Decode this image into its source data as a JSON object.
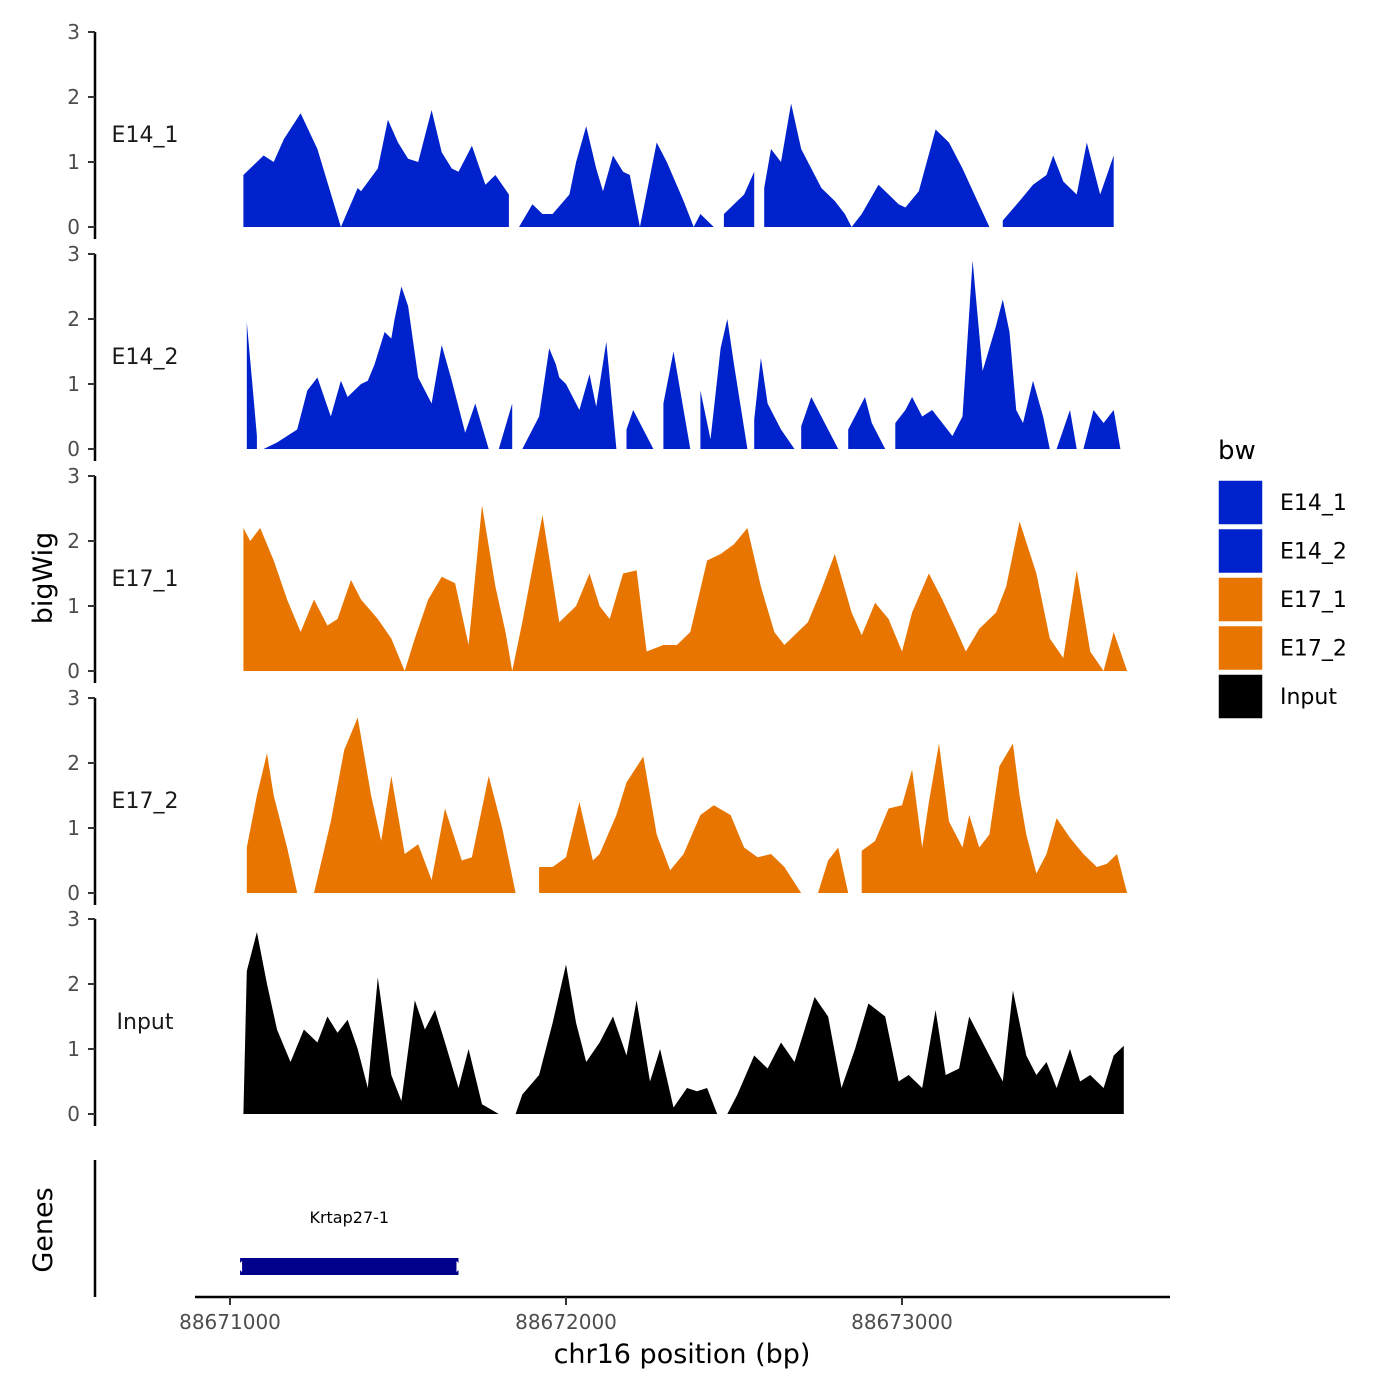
{
  "chart_data": {
    "type": "area",
    "y_axis_title": "bigWig",
    "gene_axis_title": "Genes",
    "x_axis_title": "chr16 position (bp)",
    "x_range": [
      88670900,
      88673800
    ],
    "x_ticks": [
      88671000,
      88672000,
      88673000
    ],
    "x_tick_labels": [
      "88671000",
      "88672000",
      "88673000"
    ],
    "y_range": [
      0,
      3
    ],
    "y_ticks": [
      0,
      1,
      2,
      3
    ],
    "y_tick_labels": [
      "0",
      "1",
      "2",
      "3"
    ],
    "legend": {
      "title": "bw",
      "entries": [
        {
          "label": "E14_1",
          "color": "#0022cc"
        },
        {
          "label": "E14_2",
          "color": "#0022cc"
        },
        {
          "label": "E17_1",
          "color": "#e87500"
        },
        {
          "label": "E17_2",
          "color": "#e87500"
        },
        {
          "label": "Input",
          "color": "#000000"
        }
      ]
    },
    "tracks": [
      {
        "name": "E14_1",
        "color": "#0022cc",
        "x": [
          88671040,
          88671100,
          88671130,
          88671160,
          88671210,
          88671260,
          88671330,
          88671380,
          88671390,
          88671440,
          88671470,
          88671500,
          88671530,
          88671560,
          88671600,
          88671630,
          88671660,
          88671680,
          88671720,
          88671760,
          88671790,
          88671830,
          88671860,
          88671900,
          88671930,
          88671960,
          88672010,
          88672030,
          88672060,
          88672090,
          88672110,
          88672140,
          88672170,
          88672190,
          88672220,
          88672270,
          88672300,
          88672350,
          88672380,
          88672400,
          88672440,
          88672470,
          88672500,
          88672530,
          88672560,
          88672590,
          88672610,
          88672640,
          88672670,
          88672700,
          88672730,
          88672760,
          88672800,
          88672830,
          88672850,
          88672880,
          88672930,
          88672960,
          88672990,
          88673010,
          88673050,
          88673100,
          88673140,
          88673180,
          88673220,
          88673260,
          88673300,
          88673350,
          88673390,
          88673430,
          88673450,
          88673480,
          88673520,
          88673550,
          88673590,
          88673630,
          88673660
        ],
        "y": [
          0.8,
          1.1,
          1.0,
          1.35,
          1.75,
          1.2,
          0.0,
          0.6,
          0.55,
          0.9,
          1.65,
          1.3,
          1.05,
          1.0,
          1.8,
          1.15,
          0.9,
          0.85,
          1.25,
          0.65,
          0.8,
          0.5,
          0.0,
          0.35,
          0.2,
          0.2,
          0.5,
          1.0,
          1.55,
          0.9,
          0.55,
          1.1,
          0.85,
          0.8,
          0.0,
          1.3,
          1.0,
          0.4,
          0.0,
          0.2,
          0.0,
          0.2,
          0.35,
          0.5,
          0.85,
          0.6,
          1.2,
          1.0,
          1.9,
          1.2,
          0.9,
          0.6,
          0.4,
          0.2,
          0.0,
          0.2,
          0.65,
          0.5,
          0.35,
          0.3,
          0.55,
          1.5,
          1.3,
          0.9,
          0.45,
          0.0,
          0.1,
          0.4,
          0.65,
          0.8,
          1.1,
          0.7,
          0.5,
          1.3,
          0.5,
          1.1,
          0.0
        ],
        "gaps": [
          [
            88671830,
            88671860
          ],
          [
            88672440,
            88672470
          ],
          [
            88672560,
            88672590
          ],
          [
            88673260,
            88673300
          ],
          [
            88673630,
            88673660
          ]
        ]
      },
      {
        "name": "E14_2",
        "color": "#0022cc",
        "x": [
          88671050,
          88671070,
          88671080,
          88671100,
          88671140,
          88671170,
          88671200,
          88671230,
          88671260,
          88671300,
          88671330,
          88671350,
          88671370,
          88671390,
          88671410,
          88671430,
          88671460,
          88671480,
          88671490,
          88671510,
          88671530,
          88671560,
          88671600,
          88671630,
          88671660,
          88671700,
          88671730,
          88671770,
          88671800,
          88671840,
          88671870,
          88671920,
          88671950,
          88671970,
          88671980,
          88672000,
          88672040,
          88672070,
          88672090,
          88672120,
          88672150,
          88672180,
          88672200,
          88672260,
          88672290,
          88672320,
          88672370,
          88672400,
          88672430,
          88672460,
          88672480,
          88672500,
          88672540,
          88672560,
          88672580,
          88672600,
          88672640,
          88672680,
          88672700,
          88672710,
          88672730,
          88672770,
          88672810,
          88672840,
          88672870,
          88672890,
          88672910,
          88672950,
          88672980,
          88673010,
          88673030,
          88673060,
          88673090,
          88673120,
          88673150,
          88673180,
          88673210,
          88673240,
          88673280,
          88673300,
          88673320,
          88673340,
          88673360,
          88673390,
          88673420,
          88673440,
          88673460,
          88673500,
          88673520,
          88673540,
          88673570,
          88673600,
          88673630,
          88673650
        ],
        "y": [
          1.95,
          0.8,
          0.2,
          0.0,
          0.1,
          0.2,
          0.3,
          0.9,
          1.1,
          0.5,
          1.05,
          0.8,
          0.9,
          1.0,
          1.05,
          1.3,
          1.8,
          1.7,
          2.0,
          2.5,
          2.2,
          1.1,
          0.7,
          1.6,
          1.05,
          0.25,
          0.7,
          0.0,
          0.0,
          0.7,
          0.0,
          0.5,
          1.55,
          1.3,
          1.1,
          1.0,
          0.6,
          1.15,
          0.65,
          1.65,
          0.0,
          0.3,
          0.6,
          0.0,
          0.7,
          1.5,
          0.0,
          0.9,
          0.15,
          1.55,
          2.0,
          1.3,
          0.0,
          0.45,
          1.4,
          0.7,
          0.3,
          0.0,
          0.35,
          0.5,
          0.8,
          0.4,
          0.0,
          0.3,
          0.6,
          0.8,
          0.4,
          0.0,
          0.4,
          0.6,
          0.8,
          0.5,
          0.6,
          0.4,
          0.2,
          0.5,
          2.9,
          1.2,
          1.9,
          2.3,
          1.8,
          0.6,
          0.4,
          1.05,
          0.5,
          0.0,
          0.0,
          0.6,
          0.0,
          0.0,
          0.6,
          0.4,
          0.6,
          0.0
        ],
        "gaps": [
          [
            88671080,
            88671100
          ],
          [
            88671770,
            88671800
          ],
          [
            88671840,
            88671870
          ],
          [
            88672150,
            88672180
          ],
          [
            88672260,
            88672290
          ],
          [
            88672370,
            88672400
          ],
          [
            88672540,
            88672560
          ],
          [
            88672680,
            88672700
          ],
          [
            88672810,
            88672840
          ],
          [
            88672950,
            88672980
          ]
        ]
      },
      {
        "name": "E17_1",
        "color": "#e87500",
        "x": [
          88671040,
          88671060,
          88671090,
          88671130,
          88671170,
          88671210,
          88671250,
          88671290,
          88671320,
          88671360,
          88671390,
          88671440,
          88671480,
          88671520,
          88671550,
          88671590,
          88671630,
          88671670,
          88671710,
          88671750,
          88671790,
          88671820,
          88671840,
          88671870,
          88671930,
          88671980,
          88672030,
          88672070,
          88672100,
          88672130,
          88672170,
          88672210,
          88672240,
          88672290,
          88672330,
          88672370,
          88672420,
          88672460,
          88672500,
          88672540,
          88672580,
          88672620,
          88672650,
          88672690,
          88672720,
          88672760,
          88672800,
          88672850,
          88672880,
          88672920,
          88672960,
          88673000,
          88673030,
          88673080,
          88673120,
          88673160,
          88673190,
          88673230,
          88673280,
          88673310,
          88673350,
          88673400,
          88673440,
          88673480,
          88673520,
          88673560,
          88673600,
          88673630,
          88673670
        ],
        "y": [
          2.2,
          2.0,
          2.2,
          1.7,
          1.1,
          0.6,
          1.1,
          0.7,
          0.8,
          1.4,
          1.1,
          0.8,
          0.5,
          0.0,
          0.5,
          1.1,
          1.45,
          1.35,
          0.4,
          2.55,
          1.3,
          0.6,
          0.0,
          0.75,
          2.4,
          0.75,
          1.0,
          1.5,
          1.0,
          0.8,
          1.5,
          1.55,
          0.3,
          0.4,
          0.4,
          0.6,
          1.7,
          1.8,
          1.95,
          2.2,
          1.3,
          0.6,
          0.4,
          0.6,
          0.75,
          1.25,
          1.8,
          0.9,
          0.55,
          1.05,
          0.8,
          0.3,
          0.9,
          1.5,
          1.1,
          0.65,
          0.3,
          0.65,
          0.9,
          1.3,
          2.3,
          1.5,
          0.5,
          0.2,
          1.55,
          0.3,
          0.0,
          0.6,
          0.0
        ],
        "gaps": []
      },
      {
        "name": "E17_2",
        "color": "#e87500",
        "x": [
          88671050,
          88671080,
          88671110,
          88671130,
          88671170,
          88671200,
          88671250,
          88671300,
          88671340,
          88671380,
          88671420,
          88671450,
          88671480,
          88671520,
          88671560,
          88671600,
          88671640,
          88671690,
          88671720,
          88671770,
          88671810,
          88671850,
          88671890,
          88671920,
          88671960,
          88672000,
          88672040,
          88672080,
          88672100,
          88672150,
          88672180,
          88672230,
          88672270,
          88672310,
          88672350,
          88672400,
          88672440,
          88672490,
          88672530,
          88672570,
          88672610,
          88672650,
          88672700,
          88672750,
          88672780,
          88672810,
          88672840,
          88672880,
          88672920,
          88672960,
          88673000,
          88673030,
          88673060,
          88673080,
          88673110,
          88673140,
          88673180,
          88673200,
          88673230,
          88673260,
          88673290,
          88673330,
          88673350,
          88673370,
          88673400,
          88673430,
          88673460,
          88673500,
          88673540,
          88673580,
          88673610,
          88673640,
          88673670
        ],
        "y": [
          0.7,
          1.5,
          2.15,
          1.5,
          0.7,
          0.0,
          0.0,
          1.1,
          2.2,
          2.7,
          1.5,
          0.8,
          1.8,
          0.6,
          0.75,
          0.2,
          1.3,
          0.5,
          0.55,
          1.8,
          1.0,
          0.0,
          0.0,
          0.4,
          0.4,
          0.55,
          1.4,
          0.5,
          0.6,
          1.2,
          1.7,
          2.1,
          0.9,
          0.35,
          0.6,
          1.2,
          1.35,
          1.2,
          0.7,
          0.55,
          0.6,
          0.4,
          0.0,
          0.0,
          0.5,
          0.7,
          0.0,
          0.65,
          0.8,
          1.3,
          1.35,
          1.9,
          0.7,
          1.4,
          2.3,
          1.1,
          0.7,
          1.2,
          0.7,
          0.9,
          1.95,
          2.3,
          1.5,
          0.9,
          0.3,
          0.6,
          1.15,
          0.85,
          0.6,
          0.4,
          0.45,
          0.6,
          0.0
        ],
        "gaps": [
          [
            88671200,
            88671250
          ],
          [
            88671890,
            88671920
          ],
          [
            88672700,
            88672750
          ],
          [
            88672840,
            88672880
          ]
        ]
      },
      {
        "name": "Input",
        "color": "#000000",
        "x": [
          88671040,
          88671050,
          88671080,
          88671110,
          88671140,
          88671180,
          88671220,
          88671260,
          88671290,
          88671320,
          88671350,
          88671380,
          88671410,
          88671440,
          88671480,
          88671510,
          88671550,
          88671580,
          88671610,
          88671640,
          88671680,
          88671710,
          88671750,
          88671800,
          88671850,
          88671870,
          88671920,
          88671960,
          88672000,
          88672030,
          88672060,
          88672100,
          88672140,
          88672180,
          88672210,
          88672250,
          88672280,
          88672320,
          88672360,
          88672390,
          88672420,
          88672450,
          88672480,
          88672510,
          88672560,
          88672600,
          88672640,
          88672680,
          88672710,
          88672740,
          88672780,
          88672820,
          88672860,
          88672900,
          88672950,
          88672990,
          88673020,
          88673060,
          88673100,
          88673130,
          88673170,
          88673200,
          88673250,
          88673300,
          88673330,
          88673370,
          88673400,
          88673430,
          88673460,
          88673500,
          88673530,
          88673560,
          88673600,
          88673630,
          88673660
        ],
        "y": [
          0.0,
          2.2,
          2.8,
          2.0,
          1.3,
          0.8,
          1.3,
          1.1,
          1.5,
          1.25,
          1.45,
          1.0,
          0.4,
          2.1,
          0.6,
          0.2,
          1.75,
          1.3,
          1.6,
          1.1,
          0.4,
          1.0,
          0.15,
          0.0,
          0.0,
          0.3,
          0.6,
          1.4,
          2.3,
          1.4,
          0.8,
          1.1,
          1.5,
          0.9,
          1.75,
          0.5,
          1.0,
          0.1,
          0.4,
          0.35,
          0.4,
          0.0,
          0.0,
          0.3,
          0.9,
          0.7,
          1.1,
          0.8,
          1.3,
          1.8,
          1.5,
          0.4,
          1.0,
          1.7,
          1.5,
          0.5,
          0.6,
          0.4,
          1.6,
          0.6,
          0.7,
          1.5,
          1.0,
          0.5,
          1.9,
          0.9,
          0.6,
          0.8,
          0.4,
          1.0,
          0.5,
          0.6,
          0.4,
          0.9,
          1.05
        ],
        "gaps": [
          [
            88671800,
            88671850
          ],
          [
            88672450,
            88672480
          ]
        ]
      }
    ],
    "genes": [
      {
        "name": "Krtap27-1",
        "start": 88671030,
        "end": 88671680,
        "color": "#00008b"
      }
    ]
  }
}
